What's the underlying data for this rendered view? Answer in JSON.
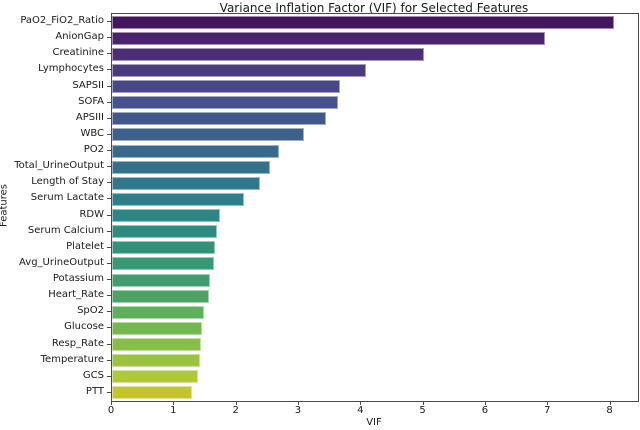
{
  "chart_data": {
    "type": "bar",
    "orientation": "horizontal",
    "title": "Variance Inflation Factor (VIF) for Selected Features",
    "xlabel": "VIF",
    "ylabel": "Features",
    "xlim": [
      0,
      8.44
    ],
    "xticks": [
      0,
      1,
      2,
      3,
      4,
      5,
      6,
      7,
      8
    ],
    "grid": false,
    "legend": false,
    "palette": "viridis",
    "categories": [
      "PaO2_FiO2_Ratio",
      "AnionGap",
      "Creatinine",
      "Lymphocytes",
      "SAPSII",
      "SOFA",
      "APSIII",
      "WBC",
      "PO2",
      "Total_UrineOutput",
      "Length of Stay",
      "Serum Lactate",
      "RDW",
      "Serum Calcium",
      "Platelet",
      "Avg_UrineOutput",
      "Potassium",
      "Heart_Rate",
      "SpO2",
      "Glucose",
      "Resp_Rate",
      "Temperature",
      "GCS",
      "PTT"
    ],
    "values": [
      8.06,
      6.95,
      5.0,
      4.08,
      3.66,
      3.62,
      3.44,
      3.08,
      2.68,
      2.54,
      2.38,
      2.12,
      1.74,
      1.69,
      1.66,
      1.64,
      1.58,
      1.56,
      1.47,
      1.45,
      1.43,
      1.42,
      1.38,
      1.28
    ],
    "colors": [
      "#461560",
      "#4a2270",
      "#4b2d78",
      "#4c3a81",
      "#4a4787",
      "#45528c",
      "#41588c",
      "#3d618c",
      "#39698c",
      "#36718c",
      "#32788b",
      "#2f7f89",
      "#2d8584",
      "#2e8b80",
      "#32917b",
      "#389774",
      "#419c6e",
      "#4da266",
      "#5fb05a",
      "#74b94f",
      "#87be47",
      "#9ac33f",
      "#aec838",
      "#c4c42f"
    ]
  }
}
